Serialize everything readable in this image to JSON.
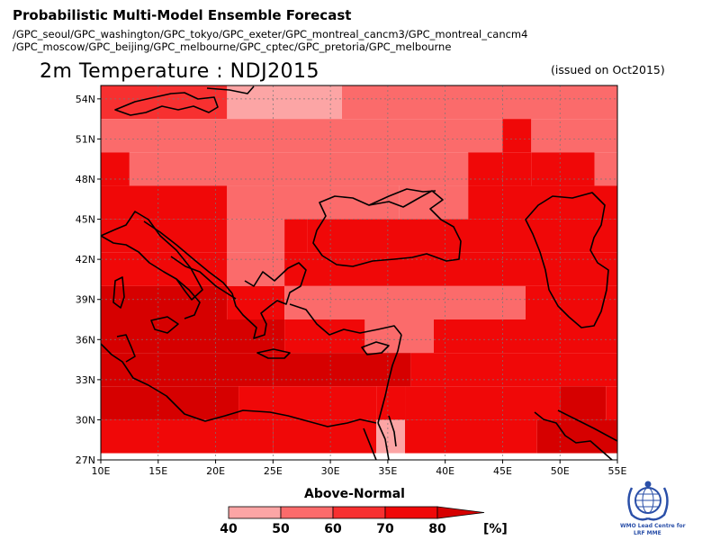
{
  "header": {
    "title": "Probabilistic Multi-Model Ensemble Forecast",
    "models_line1": "/GPC_seoul/GPC_washington/GPC_tokyo/GPC_exeter/GPC_montreal_cancm3/GPC_montreal_cancm4",
    "models_line2": "/GPC_moscow/GPC_beijing/GPC_melbourne/GPC_cptec/GPC_pretoria/GPC_melbourne",
    "subtitle": "2m Temperature : NDJ2015",
    "issued": "(issued on Oct2015)"
  },
  "map": {
    "lon_range": [
      10,
      55
    ],
    "lat_range": [
      27,
      55
    ],
    "lon_ticks": [
      "10E",
      "15E",
      "20E",
      "25E",
      "30E",
      "35E",
      "40E",
      "45E",
      "50E",
      "55E"
    ],
    "lat_ticks": [
      "27N",
      "30N",
      "33N",
      "36N",
      "39N",
      "42N",
      "45N",
      "48N",
      "51N",
      "54N"
    ],
    "grid": "dotted",
    "coastline_color": "#000000"
  },
  "chart_data": {
    "type": "heatmap",
    "category": "Above-Normal",
    "unit": "[%]",
    "bins": [
      40,
      50,
      60,
      70,
      80
    ],
    "bin_colors": [
      "#fca5a5",
      "#fb6b6b",
      "#f73030",
      "#f00808",
      "#d60000"
    ],
    "cell_size_deg": 2.5,
    "rows": [
      {
        "lat": 53.75,
        "segments": [
          [
            10,
            21,
            3
          ],
          [
            21,
            31,
            1
          ],
          [
            31,
            55,
            2
          ]
        ]
      },
      {
        "lat": 51.25,
        "segments": [
          [
            10,
            45,
            2
          ],
          [
            45,
            47.5,
            4
          ],
          [
            47.5,
            55,
            2
          ]
        ]
      },
      {
        "lat": 48.75,
        "segments": [
          [
            10,
            12.5,
            4
          ],
          [
            12.5,
            42,
            2
          ],
          [
            42,
            45,
            4
          ],
          [
            45,
            47.5,
            4
          ],
          [
            47.5,
            53,
            4
          ],
          [
            53,
            55,
            2
          ]
        ]
      },
      {
        "lat": 46.25,
        "segments": [
          [
            10,
            21,
            4
          ],
          [
            21,
            36,
            2
          ],
          [
            36,
            42,
            2
          ],
          [
            42,
            55,
            4
          ]
        ]
      },
      {
        "lat": 43.75,
        "segments": [
          [
            10,
            21,
            4
          ],
          [
            21,
            26,
            2
          ],
          [
            26,
            28,
            4
          ],
          [
            28,
            55,
            4
          ]
        ]
      },
      {
        "lat": 41.25,
        "segments": [
          [
            10,
            21,
            4
          ],
          [
            21,
            26,
            2
          ],
          [
            26,
            55,
            4
          ]
        ]
      },
      {
        "lat": 38.75,
        "segments": [
          [
            10,
            21,
            5
          ],
          [
            21,
            26,
            4
          ],
          [
            26,
            47,
            2
          ],
          [
            47,
            55,
            4
          ]
        ]
      },
      {
        "lat": 36.25,
        "segments": [
          [
            10,
            26,
            5
          ],
          [
            26,
            33,
            4
          ],
          [
            33,
            39,
            2
          ],
          [
            39,
            55,
            4
          ]
        ]
      },
      {
        "lat": 33.75,
        "segments": [
          [
            10,
            25,
            5
          ],
          [
            25,
            37,
            5
          ],
          [
            37,
            55,
            4
          ]
        ]
      },
      {
        "lat": 31.25,
        "segments": [
          [
            10,
            22,
            5
          ],
          [
            22,
            34,
            4
          ],
          [
            34,
            36.5,
            4
          ],
          [
            36.5,
            50,
            4
          ],
          [
            50,
            54,
            5
          ],
          [
            54,
            55,
            4
          ]
        ]
      },
      {
        "lat": 28.75,
        "segments": [
          [
            10,
            25,
            4
          ],
          [
            25,
            34,
            4
          ],
          [
            34,
            36.5,
            1
          ],
          [
            36.5,
            48,
            4
          ],
          [
            48,
            55,
            5
          ]
        ]
      }
    ]
  }
}
